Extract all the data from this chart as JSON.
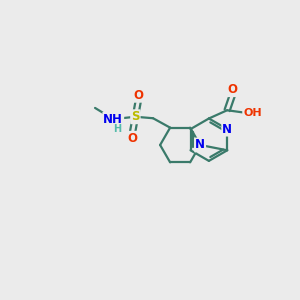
{
  "bg_color": "#ebebeb",
  "bond_color": "#3a7a6a",
  "bond_width": 1.6,
  "atom_colors": {
    "N": "#0000ee",
    "O": "#ee3300",
    "S": "#bbbb00",
    "C": "#3a7a6a",
    "H": "#55bbaa"
  },
  "font_size": 8.5,
  "fig_size": [
    3.0,
    3.0
  ],
  "dpi": 100
}
